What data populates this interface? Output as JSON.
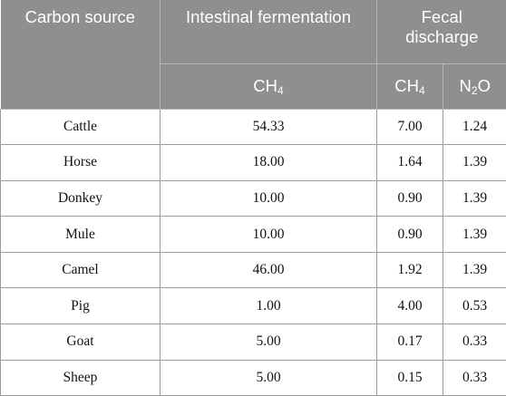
{
  "header": {
    "carbon_source": "Carbon source",
    "intestinal_fermentation": "Intestinal fermentation",
    "fecal_discharge": "Fecal discharge",
    "ch4_base": "CH",
    "ch4_sub": "4",
    "n2o_base": "N",
    "n2o_sub": "2",
    "n2o_tail": "O"
  },
  "rows": [
    {
      "source": "Cattle",
      "if_ch4": "54.33",
      "fd_ch4": "7.00",
      "fd_n2o": "1.24"
    },
    {
      "source": "Horse",
      "if_ch4": "18.00",
      "fd_ch4": "1.64",
      "fd_n2o": "1.39"
    },
    {
      "source": "Donkey",
      "if_ch4": "10.00",
      "fd_ch4": "0.90",
      "fd_n2o": "1.39"
    },
    {
      "source": "Mule",
      "if_ch4": "10.00",
      "fd_ch4": "0.90",
      "fd_n2o": "1.39"
    },
    {
      "source": "Camel",
      "if_ch4": "46.00",
      "fd_ch4": "1.92",
      "fd_n2o": "1.39"
    },
    {
      "source": "Pig",
      "if_ch4": "1.00",
      "fd_ch4": "4.00",
      "fd_n2o": "0.53"
    },
    {
      "source": "Goat",
      "if_ch4": "5.00",
      "fd_ch4": "0.17",
      "fd_n2o": "0.33"
    },
    {
      "source": "Sheep",
      "if_ch4": "5.00",
      "fd_ch4": "0.15",
      "fd_n2o": "0.33"
    }
  ]
}
